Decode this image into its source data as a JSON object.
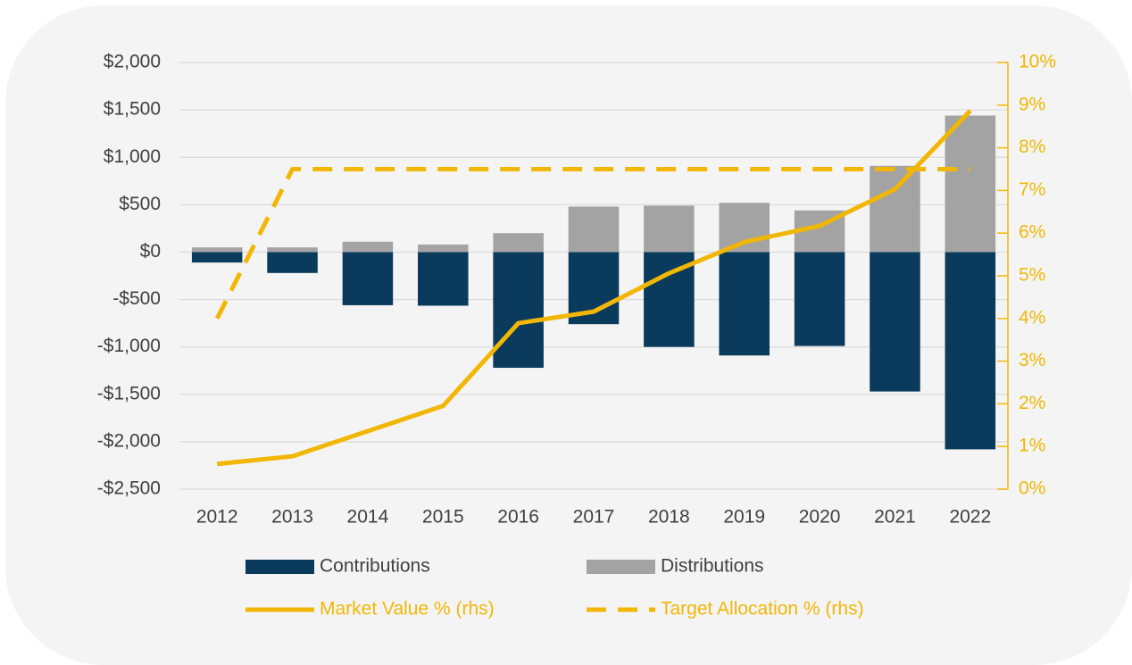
{
  "chart_data": {
    "type": "bar",
    "categories": [
      "2012",
      "2013",
      "2014",
      "2015",
      "2016",
      "2017",
      "2018",
      "2019",
      "2020",
      "2021",
      "2022"
    ],
    "series": [
      {
        "name": "Contributions",
        "type": "bar",
        "color": "#0a3a5c",
        "values": [
          -110,
          -220,
          -560,
          -565,
          -1220,
          -760,
          -1000,
          -1090,
          -990,
          -1470,
          -2080
        ]
      },
      {
        "name": "Distributions",
        "type": "bar",
        "color": "#a3a3a3",
        "values": [
          50,
          50,
          110,
          80,
          200,
          480,
          490,
          520,
          440,
          910,
          1440
        ]
      },
      {
        "name": "Market Value % (rhs)",
        "type": "line",
        "axis": "y2",
        "style": "solid",
        "color": "#f2b705",
        "values": [
          0.59,
          0.77,
          1.36,
          1.95,
          3.89,
          4.16,
          5.06,
          5.79,
          6.17,
          7.03,
          8.87
        ]
      },
      {
        "name": "Target Allocation % (rhs)",
        "type": "line",
        "axis": "y2",
        "style": "dashed",
        "color": "#f2b705",
        "values": [
          4.0,
          7.5,
          7.5,
          7.5,
          7.5,
          7.5,
          7.5,
          7.5,
          7.5,
          7.5,
          7.5
        ]
      }
    ],
    "ylim": [
      -2500,
      2000
    ],
    "yticks": [
      {
        "value": 2000,
        "label": "$2,000"
      },
      {
        "value": 1500,
        "label": "$1,500"
      },
      {
        "value": 1000,
        "label": "$1,000"
      },
      {
        "value": 500,
        "label": "$500"
      },
      {
        "value": 0,
        "label": "$0"
      },
      {
        "value": -500,
        "label": "-$500"
      },
      {
        "value": -1000,
        "label": "-$1,000"
      },
      {
        "value": -1500,
        "label": "-$1,500"
      },
      {
        "value": -2000,
        "label": "-$2,000"
      },
      {
        "value": -2500,
        "label": "-$2,500"
      }
    ],
    "y2lim": [
      0,
      10
    ],
    "y2ticks": [
      {
        "value": 10,
        "label": "10%"
      },
      {
        "value": 9,
        "label": "9%"
      },
      {
        "value": 8,
        "label": "8%"
      },
      {
        "value": 7,
        "label": "7%"
      },
      {
        "value": 6,
        "label": "6%"
      },
      {
        "value": 5,
        "label": "5%"
      },
      {
        "value": 4,
        "label": "4%"
      },
      {
        "value": 3,
        "label": "3%"
      },
      {
        "value": 2,
        "label": "2%"
      },
      {
        "value": 1,
        "label": "1%"
      },
      {
        "value": 0,
        "label": "0%"
      }
    ],
    "y2_color": "#f2b705",
    "grid": true,
    "legend": "bottom"
  }
}
